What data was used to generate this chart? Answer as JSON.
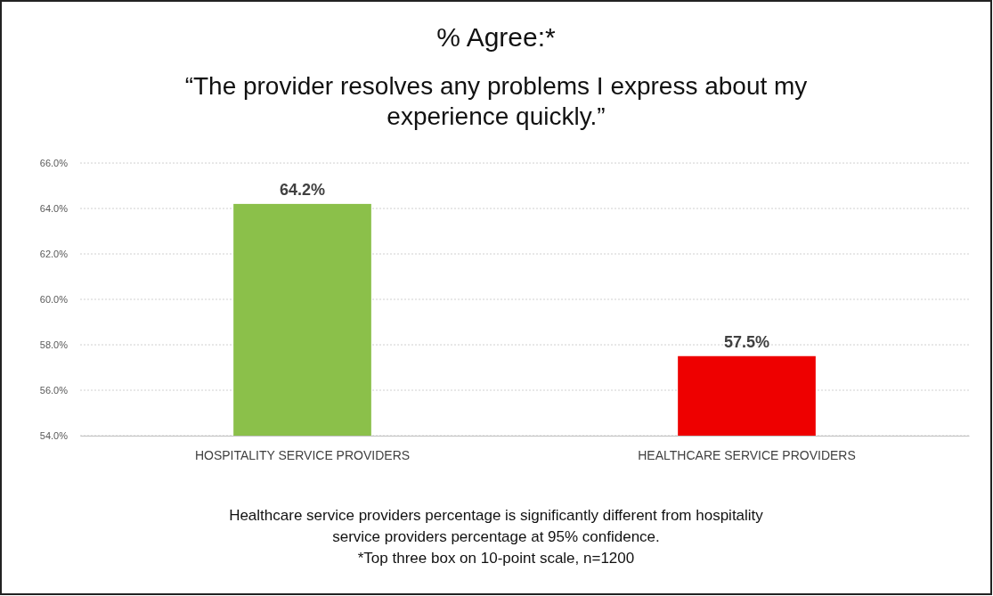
{
  "chart_data": {
    "type": "bar",
    "title": "% Agree:*",
    "subtitle": "“The provider resolves any problems I express about my experience quickly.”",
    "categories": [
      "HOSPITALITY SERVICE PROVIDERS",
      "HEALTHCARE SERVICE PROVIDERS"
    ],
    "values": [
      64.2,
      57.5
    ],
    "colors": [
      "#8bc04a",
      "#ee0000"
    ],
    "value_labels": [
      "64.2%",
      "57.5%"
    ],
    "ylim": [
      54,
      66
    ],
    "yticks": [
      {
        "value": 54,
        "label": "54.0%"
      },
      {
        "value": 56,
        "label": "56.0%"
      },
      {
        "value": 58,
        "label": "58.0%"
      },
      {
        "value": 60,
        "label": "60.0%"
      },
      {
        "value": 62,
        "label": "62.0%"
      },
      {
        "value": 64,
        "label": "64.0%"
      },
      {
        "value": 66,
        "label": "66.0%"
      }
    ],
    "grid": "y",
    "annotations": [
      "Healthcare service providers percentage is significantly different from hospitality service providers percentage at 95% confidence.",
      "*Top three box on 10-point scale, n=1200"
    ]
  }
}
